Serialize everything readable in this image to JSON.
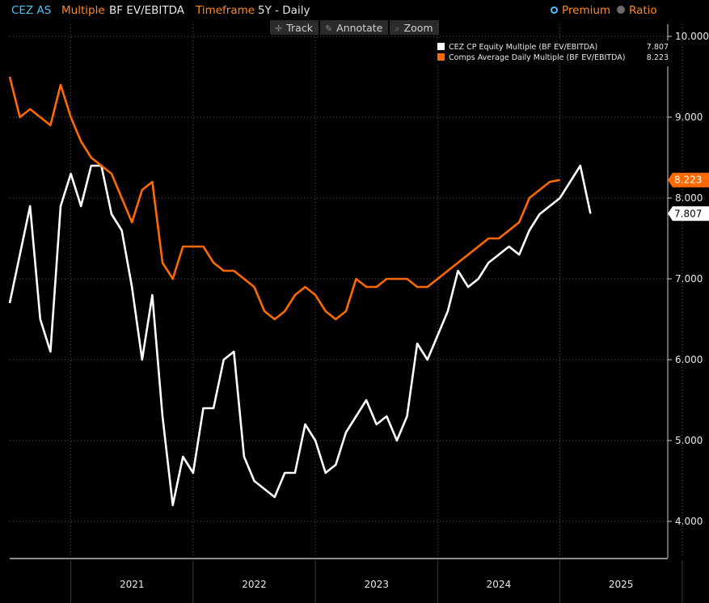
{
  "header": {
    "ticker": "CEZ AS",
    "multiple_label": "Multiple",
    "multiple_value": "BF EV/EBITDA",
    "timeframe_label": "Timeframe",
    "timeframe_value": "5Y - Daily",
    "options": [
      {
        "label": "Premium",
        "selected": true
      },
      {
        "label": "Ratio",
        "selected": false
      }
    ]
  },
  "toolbar": {
    "track_label": "Track",
    "annotate_label": "Annotate",
    "zoom_label": "Zoom"
  },
  "colors": {
    "background": "#000000",
    "equity_series": "#ffffff",
    "comps_series": "#ff6a00",
    "header_accent": "#ff8a1e",
    "ticker": "#4fc3f7"
  },
  "chart_data": {
    "type": "line",
    "y_axis_position": "right",
    "ylim": [
      3.55,
      10.15
    ],
    "y_ticks": [
      {
        "value": 4,
        "label": "4.000"
      },
      {
        "value": 5,
        "label": "5.000"
      },
      {
        "value": 6,
        "label": "6.000"
      },
      {
        "value": 7,
        "label": "7.000"
      },
      {
        "value": 8,
        "label": "8.000"
      },
      {
        "value": 9,
        "label": "9.000"
      },
      {
        "value": 10,
        "label": "10.000"
      }
    ],
    "xlim": [
      "2020-07",
      "2025-10"
    ],
    "x_tick_labels": [
      "2021",
      "2022",
      "2023",
      "2024",
      "2025"
    ],
    "x_year_starts": [
      "2021-01",
      "2022-01",
      "2023-01",
      "2024-01",
      "2025-01",
      "2026-01"
    ],
    "grid": true,
    "legend_position": "top-right",
    "series": [
      {
        "name": "CEZ CP Equity Multiple (BF EV/EBITDA)",
        "last_value": "7.807",
        "color": "#ffffff",
        "x": [
          "2020-07",
          "2020-08",
          "2020-09",
          "2020-10",
          "2020-11",
          "2020-12",
          "2021-01",
          "2021-02",
          "2021-03",
          "2021-04",
          "2021-05",
          "2021-06",
          "2021-07",
          "2021-08",
          "2021-09",
          "2021-10",
          "2021-11",
          "2021-12",
          "2022-01",
          "2022-02",
          "2022-03",
          "2022-04",
          "2022-05",
          "2022-06",
          "2022-07",
          "2022-08",
          "2022-09",
          "2022-10",
          "2022-11",
          "2022-12",
          "2023-01",
          "2023-02",
          "2023-03",
          "2023-04",
          "2023-05",
          "2023-06",
          "2023-07",
          "2023-08",
          "2023-09",
          "2023-10",
          "2023-11",
          "2023-12",
          "2024-01",
          "2024-02",
          "2024-03",
          "2024-04",
          "2024-05",
          "2024-06",
          "2024-07",
          "2024-08",
          "2024-09",
          "2024-10",
          "2024-11",
          "2024-12",
          "2025-01",
          "2025-02",
          "2025-03",
          "2025-04",
          "2025-05",
          "2025-06",
          "2025-07",
          "2025-08",
          "2025-09"
        ],
        "values": [
          6.7,
          7.3,
          7.9,
          6.5,
          6.1,
          7.9,
          8.3,
          7.9,
          8.4,
          8.4,
          7.8,
          7.6,
          6.9,
          6.0,
          6.8,
          5.3,
          4.2,
          4.8,
          4.6,
          5.4,
          5.4,
          6.0,
          6.1,
          4.8,
          4.5,
          4.4,
          4.3,
          4.6,
          4.6,
          5.2,
          5.0,
          4.6,
          4.7,
          5.1,
          5.3,
          5.5,
          5.2,
          5.3,
          5.0,
          5.3,
          6.2,
          6.0,
          6.3,
          6.6,
          7.1,
          6.9,
          7.0,
          7.2,
          7.3,
          7.4,
          7.3,
          7.6,
          7.8,
          7.9,
          8.0,
          8.2,
          8.4,
          7.807,
          7.807,
          7.807,
          7.807,
          7.807,
          7.807
        ]
      },
      {
        "name": "Comps Average Daily Multiple (BF EV/EBITDA)",
        "last_value": "8.223",
        "color": "#ff6a00",
        "x": [
          "2020-07",
          "2020-08",
          "2020-09",
          "2020-10",
          "2020-11",
          "2020-12",
          "2021-01",
          "2021-02",
          "2021-03",
          "2021-04",
          "2021-05",
          "2021-06",
          "2021-07",
          "2021-08",
          "2021-09",
          "2021-10",
          "2021-11",
          "2021-12",
          "2022-01",
          "2022-02",
          "2022-03",
          "2022-04",
          "2022-05",
          "2022-06",
          "2022-07",
          "2022-08",
          "2022-09",
          "2022-10",
          "2022-11",
          "2022-12",
          "2023-01",
          "2023-02",
          "2023-03",
          "2023-04",
          "2023-05",
          "2023-06",
          "2023-07",
          "2023-08",
          "2023-09",
          "2023-10",
          "2023-11",
          "2023-12",
          "2024-01",
          "2024-02",
          "2024-03",
          "2024-04",
          "2024-05",
          "2024-06",
          "2024-07",
          "2024-08",
          "2024-09",
          "2024-10",
          "2024-11",
          "2024-12",
          "2025-01",
          "2025-02",
          "2025-03",
          "2025-04",
          "2025-05",
          "2025-06",
          "2025-07",
          "2025-08",
          "2025-09"
        ],
        "values": [
          9.5,
          9.0,
          9.1,
          9.0,
          8.9,
          9.4,
          9.0,
          8.7,
          8.5,
          8.4,
          8.3,
          8.0,
          7.7,
          8.1,
          8.2,
          7.2,
          7.0,
          7.4,
          7.4,
          7.4,
          7.2,
          7.1,
          7.1,
          7.0,
          6.9,
          6.6,
          6.5,
          6.6,
          6.8,
          6.9,
          6.8,
          6.6,
          6.5,
          6.6,
          7.0,
          6.9,
          6.9,
          7.0,
          7.0,
          7.0,
          6.9,
          6.9,
          7.0,
          7.1,
          7.2,
          7.3,
          7.4,
          7.5,
          7.5,
          7.6,
          7.7,
          8.0,
          8.1,
          8.2,
          8.223,
          8.223,
          8.223,
          8.223,
          8.223,
          8.223,
          8.223,
          8.223,
          8.223
        ]
      }
    ]
  }
}
